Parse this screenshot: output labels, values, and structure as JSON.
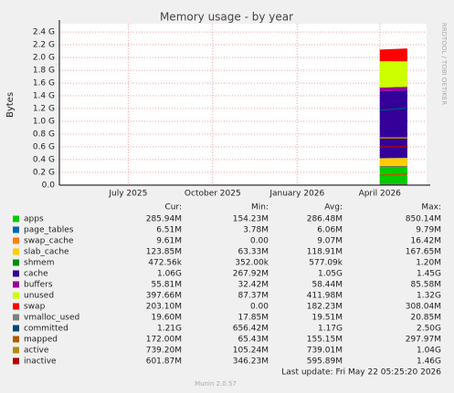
{
  "chart_data": {
    "type": "area",
    "title": "Memory usage - by year",
    "y_label": "Bytes",
    "side_note": "RRDTOOL / TOBI OETIKER",
    "footer": "Munin 2.0.57",
    "last_update": "Last update: Fri May 22 05:25:20 2026",
    "grid": true,
    "xlim": [
      "2025-04-17",
      "2026-05-22"
    ],
    "xticks": [
      {
        "value": "2025-07",
        "label": "July 2025"
      },
      {
        "value": "2025-10",
        "label": "October 2025"
      },
      {
        "value": "2026-01",
        "label": "January 2026"
      },
      {
        "value": "2026-04",
        "label": "April 2026"
      }
    ],
    "ylim": [
      0,
      2530000000
    ],
    "yticks": [
      {
        "value": 0,
        "label": "0.0"
      },
      {
        "value": 200000000,
        "label": "0.2 G"
      },
      {
        "value": 400000000,
        "label": "0.4 G"
      },
      {
        "value": 600000000,
        "label": "0.6 G"
      },
      {
        "value": 800000000,
        "label": "0.8 G"
      },
      {
        "value": 1000000000,
        "label": "1.0 G"
      },
      {
        "value": 1200000000,
        "label": "1.2 G"
      },
      {
        "value": 1400000000,
        "label": "1.4 G"
      },
      {
        "value": 1600000000,
        "label": "1.6 G"
      },
      {
        "value": 1800000000,
        "label": "1.8 G"
      },
      {
        "value": 2000000000,
        "label": "2.0 G"
      },
      {
        "value": 2200000000,
        "label": "2.2 G"
      },
      {
        "value": 2400000000,
        "label": "2.4 G"
      }
    ],
    "x": [
      "2026-04",
      "2026-05"
    ],
    "stat_headers": [
      "Cur:",
      "Min:",
      "Avg:",
      "Max:"
    ],
    "series": [
      {
        "name": "apps",
        "color": "#00cc00",
        "stack": true,
        "values": [
          286480000,
          285940000
        ],
        "stats": [
          "285.94M",
          "154.23M",
          "286.48M",
          "850.14M"
        ]
      },
      {
        "name": "page_tables",
        "color": "#0066b3",
        "stack": true,
        "values": [
          6060000,
          6510000
        ],
        "stats": [
          "6.51M",
          "3.78M",
          "6.06M",
          "9.79M"
        ]
      },
      {
        "name": "swap_cache",
        "color": "#ff8000",
        "stack": true,
        "values": [
          9070000,
          9610000
        ],
        "stats": [
          "9.61M",
          "0.00",
          "9.07M",
          "16.42M"
        ]
      },
      {
        "name": "slab_cache",
        "color": "#ffcc00",
        "stack": true,
        "values": [
          118910000,
          123850000
        ],
        "stats": [
          "123.85M",
          "63.33M",
          "118.91M",
          "167.65M"
        ]
      },
      {
        "name": "shmem",
        "color": "#008f00",
        "stack": true,
        "values": [
          577090,
          472560
        ],
        "stats": [
          "472.56k",
          "352.00k",
          "577.09k",
          "1.20M"
        ]
      },
      {
        "name": "cache",
        "color": "#330099",
        "stack": true,
        "values": [
          1050000000,
          1060000000
        ],
        "stats": [
          "1.06G",
          "267.92M",
          "1.05G",
          "1.45G"
        ]
      },
      {
        "name": "buffers",
        "color": "#990099",
        "stack": true,
        "values": [
          58440000,
          55810000
        ],
        "stats": [
          "55.81M",
          "32.42M",
          "58.44M",
          "85.58M"
        ]
      },
      {
        "name": "unused",
        "color": "#ccff00",
        "stack": true,
        "values": [
          411980000,
          397660000
        ],
        "stats": [
          "397.66M",
          "87.37M",
          "411.98M",
          "1.32G"
        ]
      },
      {
        "name": "swap",
        "color": "#ff0000",
        "stack": true,
        "values": [
          182230000,
          203100000
        ],
        "stats": [
          "203.10M",
          "0.00",
          "182.23M",
          "308.04M"
        ]
      },
      {
        "name": "vmalloc_used",
        "color": "#808080",
        "stack": false,
        "values": [
          19510000,
          19600000
        ],
        "stats": [
          "19.60M",
          "17.85M",
          "19.51M",
          "20.85M"
        ]
      },
      {
        "name": "committed",
        "color": "#00487d",
        "stack": false,
        "values": [
          1170000000,
          1210000000
        ],
        "stats": [
          "1.21G",
          "656.42M",
          "1.17G",
          "2.50G"
        ]
      },
      {
        "name": "mapped",
        "color": "#b35a00",
        "stack": false,
        "values": [
          155150000,
          172000000
        ],
        "stats": [
          "172.00M",
          "65.43M",
          "155.15M",
          "297.97M"
        ]
      },
      {
        "name": "active",
        "color": "#b38f00",
        "stack": false,
        "values": [
          739010000,
          739200000
        ],
        "stats": [
          "739.20M",
          "105.24M",
          "739.01M",
          "1.04G"
        ]
      },
      {
        "name": "inactive",
        "color": "#b30000",
        "stack": false,
        "values": [
          595890000,
          601870000
        ],
        "stats": [
          "601.87M",
          "346.23M",
          "595.89M",
          "1.46G"
        ]
      }
    ]
  }
}
